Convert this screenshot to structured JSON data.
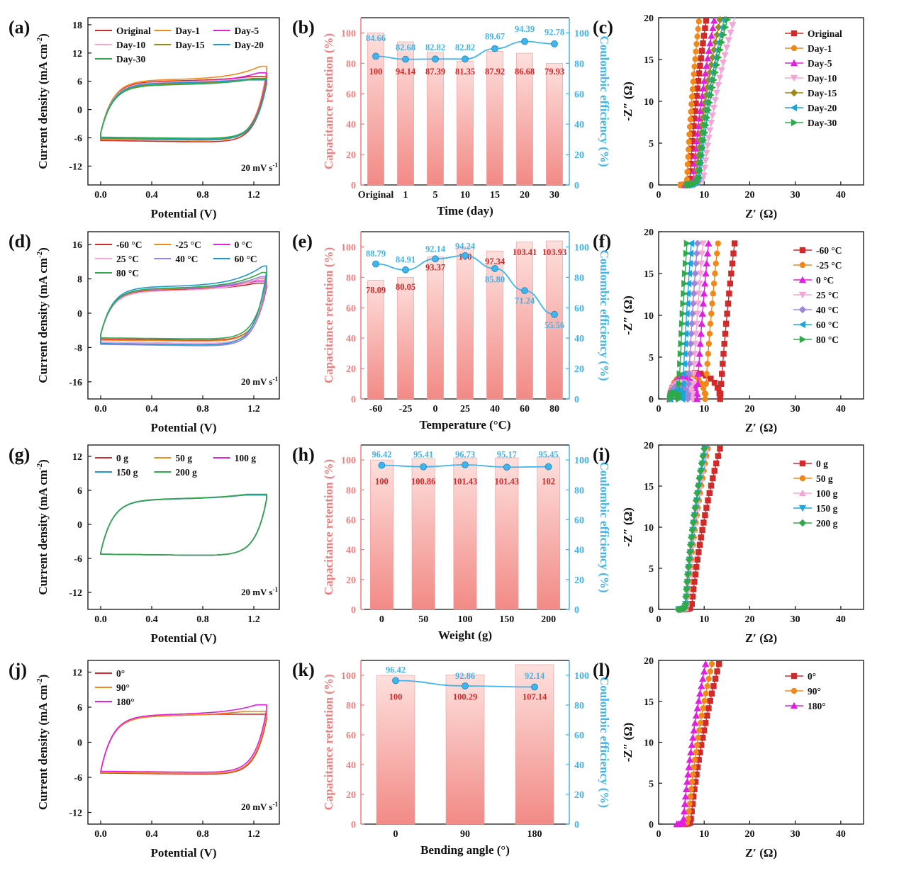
{
  "colors": {
    "red": "#d12a2a",
    "orange": "#f0891a",
    "magenta": "#e020e0",
    "pink": "#f5a6d6",
    "olive": "#9a8a18",
    "teal": "#1e9ad0",
    "green": "#2faa4a",
    "lavender": "#9b86d9",
    "cyan": "#18a6e0",
    "bar_face": "#f6b8b4",
    "axis_red": "#f07d7d",
    "axis_blue": "#40b4ec"
  },
  "chart_data": [
    {
      "id": "a",
      "panel_label": "(a)",
      "type": "line",
      "xlabel": "Potential (V)",
      "ylabel": "Current density (mA cm",
      "ylabel_sup": "-2",
      "ylabel_tail": ")",
      "xlim": [
        -0.1,
        1.4
      ],
      "ylim": [
        -16,
        19.5
      ],
      "xticks": [
        "0.0",
        "0.4",
        "0.8",
        "1.2"
      ],
      "yticks": [
        "-12",
        "-6",
        "0",
        "6",
        "12",
        "18"
      ],
      "annotation": "20 mV s",
      "annotation_sup": "-1",
      "legend_position": "top",
      "series": [
        {
          "name": "Original",
          "color": "red",
          "ib": -6.3,
          "ia": 5.8,
          "ip": 7.0
        },
        {
          "name": "Day-1",
          "color": "orange",
          "ib": -6.0,
          "ia": 6.1,
          "ip": 9.2
        },
        {
          "name": "Day-5",
          "color": "magenta",
          "ib": -5.8,
          "ia": 5.5,
          "ip": 7.8
        },
        {
          "name": "Day-10",
          "color": "pink",
          "ib": -5.7,
          "ia": 5.6,
          "ip": 6.5
        },
        {
          "name": "Day-15",
          "color": "olive",
          "ib": -5.9,
          "ia": 5.2,
          "ip": 6.6
        },
        {
          "name": "Day-20",
          "color": "teal",
          "ib": -5.8,
          "ia": 5.4,
          "ip": 6.3
        },
        {
          "name": "Day-30",
          "color": "green",
          "ib": -5.6,
          "ia": 5.0,
          "ip": 6.5
        }
      ]
    },
    {
      "id": "b",
      "panel_label": "(b)",
      "type": "bar",
      "xlabel": "Time (day)",
      "ylabel": "Capacitance retention (%)",
      "y2label": "Coulombic efficiency (%)",
      "categories": [
        "Original",
        "1",
        "5",
        "10",
        "15",
        "20",
        "30"
      ],
      "values": [
        100,
        94.14,
        87.39,
        81.35,
        87.92,
        86.68,
        79.93
      ],
      "value_labels": [
        "100",
        "94.14",
        "87.39",
        "81.35",
        "87.92",
        "86.68",
        "79.93"
      ],
      "line_values": [
        84.66,
        82.68,
        82.82,
        82.82,
        89.67,
        94.39,
        92.78
      ],
      "line_labels": [
        "84.66",
        "82.68",
        "82.82",
        "82.82",
        "89.67",
        "94.39",
        "92.78"
      ],
      "ylim": [
        0,
        110
      ],
      "yticks": [
        "0",
        "20",
        "40",
        "60",
        "80",
        "100"
      ],
      "y2ticks": [
        "0",
        "20",
        "40",
        "60",
        "80",
        "100"
      ],
      "bar_label_y": [
        75,
        75,
        75,
        75,
        75,
        75,
        75
      ],
      "line_label_y": [
        97,
        91,
        91,
        91,
        98,
        103,
        101
      ]
    },
    {
      "id": "c",
      "panel_label": "(c)",
      "type": "scatter",
      "xlabel": "Z′ (Ω)",
      "ylabel": "-Z″ (Ω)",
      "xlim": [
        0,
        45
      ],
      "ylim": [
        0,
        20
      ],
      "xticks": [
        "0",
        "10",
        "20",
        "30",
        "40"
      ],
      "yticks": [
        "0",
        "5",
        "10",
        "15",
        "20"
      ],
      "legend_position": "top-right",
      "series": [
        {
          "name": "Original",
          "color": "red",
          "marker": "square",
          "r0": 5.0,
          "x0": 6.8,
          "slope": 9.5,
          "arc": 0
        },
        {
          "name": "Day-1",
          "color": "orange",
          "marker": "circle",
          "r0": 4.8,
          "x0": 6.2,
          "slope": 13.0,
          "arc": 0
        },
        {
          "name": "Day-5",
          "color": "magenta",
          "marker": "tri-up",
          "r0": 5.8,
          "x0": 7.6,
          "slope": 7.5,
          "arc": 0
        },
        {
          "name": "Day-10",
          "color": "pink",
          "marker": "tri-down",
          "r0": 6.8,
          "x0": 9.8,
          "slope": 5.0,
          "arc": 0
        },
        {
          "name": "Day-15",
          "color": "olive",
          "marker": "diamond",
          "r0": 6.0,
          "x0": 8.2,
          "slope": 6.5,
          "arc": 0
        },
        {
          "name": "Day-20",
          "color": "cyan",
          "marker": "tri-left",
          "r0": 6.2,
          "x0": 8.6,
          "slope": 6.0,
          "arc": 0
        },
        {
          "name": "Day-30",
          "color": "green",
          "marker": "tri-right",
          "r0": 6.4,
          "x0": 8.8,
          "slope": 5.5,
          "arc": 0
        }
      ]
    },
    {
      "id": "d",
      "panel_label": "(d)",
      "type": "line",
      "xlabel": "Potential (V)",
      "ylabel": "Current density (mA cm",
      "ylabel_sup": "-2",
      "ylabel_tail": ")",
      "xlim": [
        -0.1,
        1.4
      ],
      "ylim": [
        -20,
        19
      ],
      "xticks": [
        "0.0",
        "0.4",
        "0.8",
        "1.2"
      ],
      "yticks": [
        "-16",
        "-8",
        "0",
        "8",
        "16"
      ],
      "annotation": "20 mV s",
      "annotation_sup": "-1",
      "legend_position": "top",
      "series": [
        {
          "name": "-60 °C",
          "color": "red",
          "ib": -5.8,
          "ia": 5.2,
          "ip": 7.0
        },
        {
          "name": "-25 °C",
          "color": "orange",
          "ib": -6.0,
          "ia": 5.4,
          "ip": 8.0
        },
        {
          "name": "0 °C",
          "color": "magenta",
          "ib": -6.5,
          "ia": 5.5,
          "ip": 7.5
        },
        {
          "name": "25 °C",
          "color": "pink",
          "ib": -6.5,
          "ia": 5.0,
          "ip": 8.2
        },
        {
          "name": "40 °C",
          "color": "lavender",
          "ib": -7.0,
          "ia": 5.5,
          "ip": 8.5
        },
        {
          "name": "60 °C",
          "color": "teal",
          "ib": -6.8,
          "ia": 6.0,
          "ip": 11.0
        },
        {
          "name": "80 °C",
          "color": "green",
          "ib": -5.5,
          "ia": 5.6,
          "ip": 9.5
        }
      ]
    },
    {
      "id": "e",
      "panel_label": "(e)",
      "type": "bar",
      "xlabel": "Temperature (°C)",
      "ylabel": "Capacitance retention (%)",
      "y2label": "Coulombic efficiency (%)",
      "categories": [
        "-60",
        "-25",
        "0",
        "25",
        "40",
        "60",
        "80"
      ],
      "values": [
        78.09,
        80.05,
        93.37,
        100,
        97.34,
        103.41,
        103.93
      ],
      "value_labels": [
        "78.09",
        "80.05",
        "93.37",
        "100",
        "97.34",
        "103.41",
        "103.93"
      ],
      "line_values": [
        88.79,
        84.91,
        92.14,
        94.24,
        85.8,
        71.24,
        55.56
      ],
      "line_labels": [
        "88.79",
        "84.91",
        "92.14",
        "94.24",
        "85.80",
        "71.24",
        "55.56"
      ],
      "ylim": [
        0,
        110
      ],
      "yticks": [
        "0",
        "20",
        "40",
        "60",
        "80",
        "100"
      ],
      "y2ticks": [
        "0",
        "20",
        "40",
        "60",
        "80",
        "100"
      ],
      "bar_label_y": [
        72,
        74,
        87,
        94,
        91,
        97,
        97
      ],
      "line_label_y": [
        96,
        92,
        99,
        101,
        79,
        65,
        49
      ]
    },
    {
      "id": "f",
      "panel_label": "(f)",
      "type": "scatter",
      "xlabel": "Z′ (Ω)",
      "ylabel": "-Z″ (Ω)",
      "xlim": [
        0,
        45
      ],
      "ylim": [
        0,
        20
      ],
      "xticks": [
        "0",
        "10",
        "20",
        "30",
        "40"
      ],
      "yticks": [
        "0",
        "5",
        "10",
        "15",
        "20"
      ],
      "legend_position": "right",
      "series": [
        {
          "name": "-60 °C",
          "color": "red",
          "marker": "square",
          "r0": 2.5,
          "x0": 13.5,
          "slope": 8.0,
          "arc": 11.0,
          "arc_h": 3.1
        },
        {
          "name": "-25 °C",
          "color": "orange",
          "marker": "circle",
          "r0": 2.5,
          "x0": 10.2,
          "slope": 9.0,
          "arc": 7.5,
          "arc_h": 3.0
        },
        {
          "name": "0 °C",
          "color": "magenta",
          "marker": "tri-up",
          "r0": 2.5,
          "x0": 8.4,
          "slope": 10.0,
          "arc": 5.8,
          "arc_h": 2.6
        },
        {
          "name": "25 °C",
          "color": "pink",
          "marker": "tri-down",
          "r0": 2.5,
          "x0": 7.4,
          "slope": 11.0,
          "arc": 4.9,
          "arc_h": 2.0
        },
        {
          "name": "40 °C",
          "color": "lavender",
          "marker": "diamond",
          "r0": 2.5,
          "x0": 6.4,
          "slope": 12.0,
          "arc": 4.0,
          "arc_h": 1.6
        },
        {
          "name": "60 °C",
          "color": "cyan",
          "marker": "tri-left",
          "r0": 2.5,
          "x0": 5.2,
          "slope": 13.0,
          "arc": 2.9,
          "arc_h": 1.0
        },
        {
          "name": "80 °C",
          "color": "green",
          "marker": "tri-right",
          "r0": 2.5,
          "x0": 4.4,
          "slope": 14.0,
          "arc": 2.2,
          "arc_h": 0.7
        }
      ]
    },
    {
      "id": "g",
      "panel_label": "(g)",
      "type": "line",
      "xlabel": "Potential (V)",
      "ylabel": "Current density (mA cm",
      "ylabel_sup": "-2",
      "ylabel_tail": ")",
      "xlim": [
        -0.1,
        1.4
      ],
      "ylim": [
        -15,
        14
      ],
      "xticks": [
        "0.0",
        "0.4",
        "0.8",
        "1.2"
      ],
      "yticks": [
        "-12",
        "-6",
        "0",
        "6",
        "12"
      ],
      "annotation": "20 mV s",
      "annotation_sup": "-1",
      "legend_position": "top",
      "series": [
        {
          "name": "0 g",
          "color": "red",
          "ib": -5.0,
          "ia": 4.2,
          "ip": 5.2
        },
        {
          "name": "50 g",
          "color": "orange",
          "ib": -5.0,
          "ia": 4.2,
          "ip": 5.2
        },
        {
          "name": "100 g",
          "color": "magenta",
          "ib": -5.0,
          "ia": 4.2,
          "ip": 5.2
        },
        {
          "name": "150 g",
          "color": "teal",
          "ib": -5.0,
          "ia": 4.2,
          "ip": 5.2
        },
        {
          "name": "200 g",
          "color": "green",
          "ib": -5.0,
          "ia": 4.25,
          "ip": 5.3
        }
      ]
    },
    {
      "id": "h",
      "panel_label": "(h)",
      "type": "bar",
      "xlabel": "Weight (g)",
      "ylabel": "Capacitance retention (%)",
      "y2label": "Coulombic efficiency (%)",
      "categories": [
        "0",
        "50",
        "100",
        "150",
        "200"
      ],
      "values": [
        100,
        100.86,
        101.43,
        101.43,
        102
      ],
      "value_labels": [
        "100",
        "100.86",
        "101.43",
        "101.43",
        "102"
      ],
      "line_values": [
        96.42,
        95.41,
        96.73,
        95.17,
        95.45
      ],
      "line_labels": [
        "96.42",
        "95.41",
        "96.73",
        "95.17",
        "95.45"
      ],
      "ylim": [
        0,
        110
      ],
      "yticks": [
        "0",
        "20",
        "40",
        "60",
        "80",
        "100"
      ],
      "y2ticks": [
        "0",
        "20",
        "40",
        "60",
        "80",
        "100"
      ],
      "bar_label_y": [
        86,
        86,
        86,
        86,
        86
      ],
      "line_label_y": [
        104,
        104,
        104,
        104,
        104
      ]
    },
    {
      "id": "i",
      "panel_label": "(i)",
      "type": "scatter",
      "xlabel": "Z′ (Ω)",
      "ylabel": "-Z″ (Ω)",
      "xlim": [
        0,
        45
      ],
      "ylim": [
        0,
        20
      ],
      "xticks": [
        "0",
        "10",
        "20",
        "30",
        "40"
      ],
      "yticks": [
        "0",
        "5",
        "10",
        "15",
        "20"
      ],
      "legend_position": "right",
      "series": [
        {
          "name": "0 g",
          "color": "red",
          "marker": "square",
          "r0": 5.5,
          "x0": 7.2,
          "slope": 5.5,
          "arc": 0
        },
        {
          "name": "50 g",
          "color": "orange",
          "marker": "circle",
          "r0": 4.6,
          "x0": 6.2,
          "slope": 7.5,
          "arc": 0
        },
        {
          "name": "100 g",
          "color": "pink",
          "marker": "tri-up",
          "r0": 4.5,
          "x0": 6.0,
          "slope": 7.8,
          "arc": 0
        },
        {
          "name": "150 g",
          "color": "cyan",
          "marker": "tri-down",
          "r0": 4.4,
          "x0": 5.9,
          "slope": 8.0,
          "arc": 0
        },
        {
          "name": "200 g",
          "color": "green",
          "marker": "diamond",
          "r0": 4.3,
          "x0": 5.8,
          "slope": 8.2,
          "arc": 0
        }
      ]
    },
    {
      "id": "j",
      "panel_label": "(j)",
      "type": "line",
      "xlabel": "Potential (V)",
      "ylabel": "Current density (mA cm",
      "ylabel_sup": "-2",
      "ylabel_tail": ")",
      "xlim": [
        -0.1,
        1.4
      ],
      "ylim": [
        -14,
        14
      ],
      "xticks": [
        "0.0",
        "0.4",
        "0.8",
        "1.2"
      ],
      "yticks": [
        "-12",
        "-6",
        "0",
        "6",
        "12"
      ],
      "annotation": "20 mV s",
      "annotation_sup": "-1",
      "legend_position": "top-left",
      "series": [
        {
          "name": "0°",
          "color": "red",
          "ib": -5.0,
          "ia": 4.3,
          "ip": 4.8
        },
        {
          "name": "90°",
          "color": "orange",
          "ib": -4.9,
          "ia": 4.3,
          "ip": 5.3
        },
        {
          "name": "180°",
          "color": "magenta",
          "ib": -4.7,
          "ia": 4.5,
          "ip": 6.4
        }
      ]
    },
    {
      "id": "k",
      "panel_label": "(k)",
      "type": "bar",
      "xlabel": "Bending angle (°)",
      "ylabel": "Capacitance retention (%)",
      "y2label": "Coulombic efficiency (%)",
      "categories": [
        "0",
        "90",
        "180"
      ],
      "values": [
        100,
        100.29,
        107.14
      ],
      "value_labels": [
        "100",
        "100.29",
        "107.14"
      ],
      "line_values": [
        96.42,
        92.86,
        92.14
      ],
      "line_labels": [
        "96.42",
        "92.86",
        "92.14"
      ],
      "ylim": [
        0,
        110
      ],
      "yticks": [
        "0",
        "20",
        "40",
        "60",
        "80",
        "100"
      ],
      "y2ticks": [
        "0",
        "20",
        "40",
        "60",
        "80",
        "100"
      ],
      "bar_label_y": [
        86,
        86,
        86
      ],
      "line_label_y": [
        104,
        100,
        100
      ]
    },
    {
      "id": "l",
      "panel_label": "(l)",
      "type": "scatter",
      "xlabel": "Z′ (Ω)",
      "ylabel": "-Z″ (Ω)",
      "xlim": [
        0,
        45
      ],
      "ylim": [
        0,
        20
      ],
      "xticks": [
        "0",
        "10",
        "20",
        "30",
        "40"
      ],
      "yticks": [
        "0",
        "5",
        "10",
        "15",
        "20"
      ],
      "legend_position": "top-right",
      "series": [
        {
          "name": "0°",
          "color": "red",
          "marker": "square",
          "r0": 5.5,
          "x0": 7.0,
          "slope": 5.5,
          "arc": 0
        },
        {
          "name": "90°",
          "color": "orange",
          "marker": "circle",
          "r0": 4.8,
          "x0": 6.4,
          "slope": 6.5,
          "arc": 0
        },
        {
          "name": "180°",
          "color": "magenta",
          "marker": "tri-up",
          "r0": 4.0,
          "x0": 5.4,
          "slope": 7.0,
          "arc": 0
        }
      ]
    }
  ]
}
